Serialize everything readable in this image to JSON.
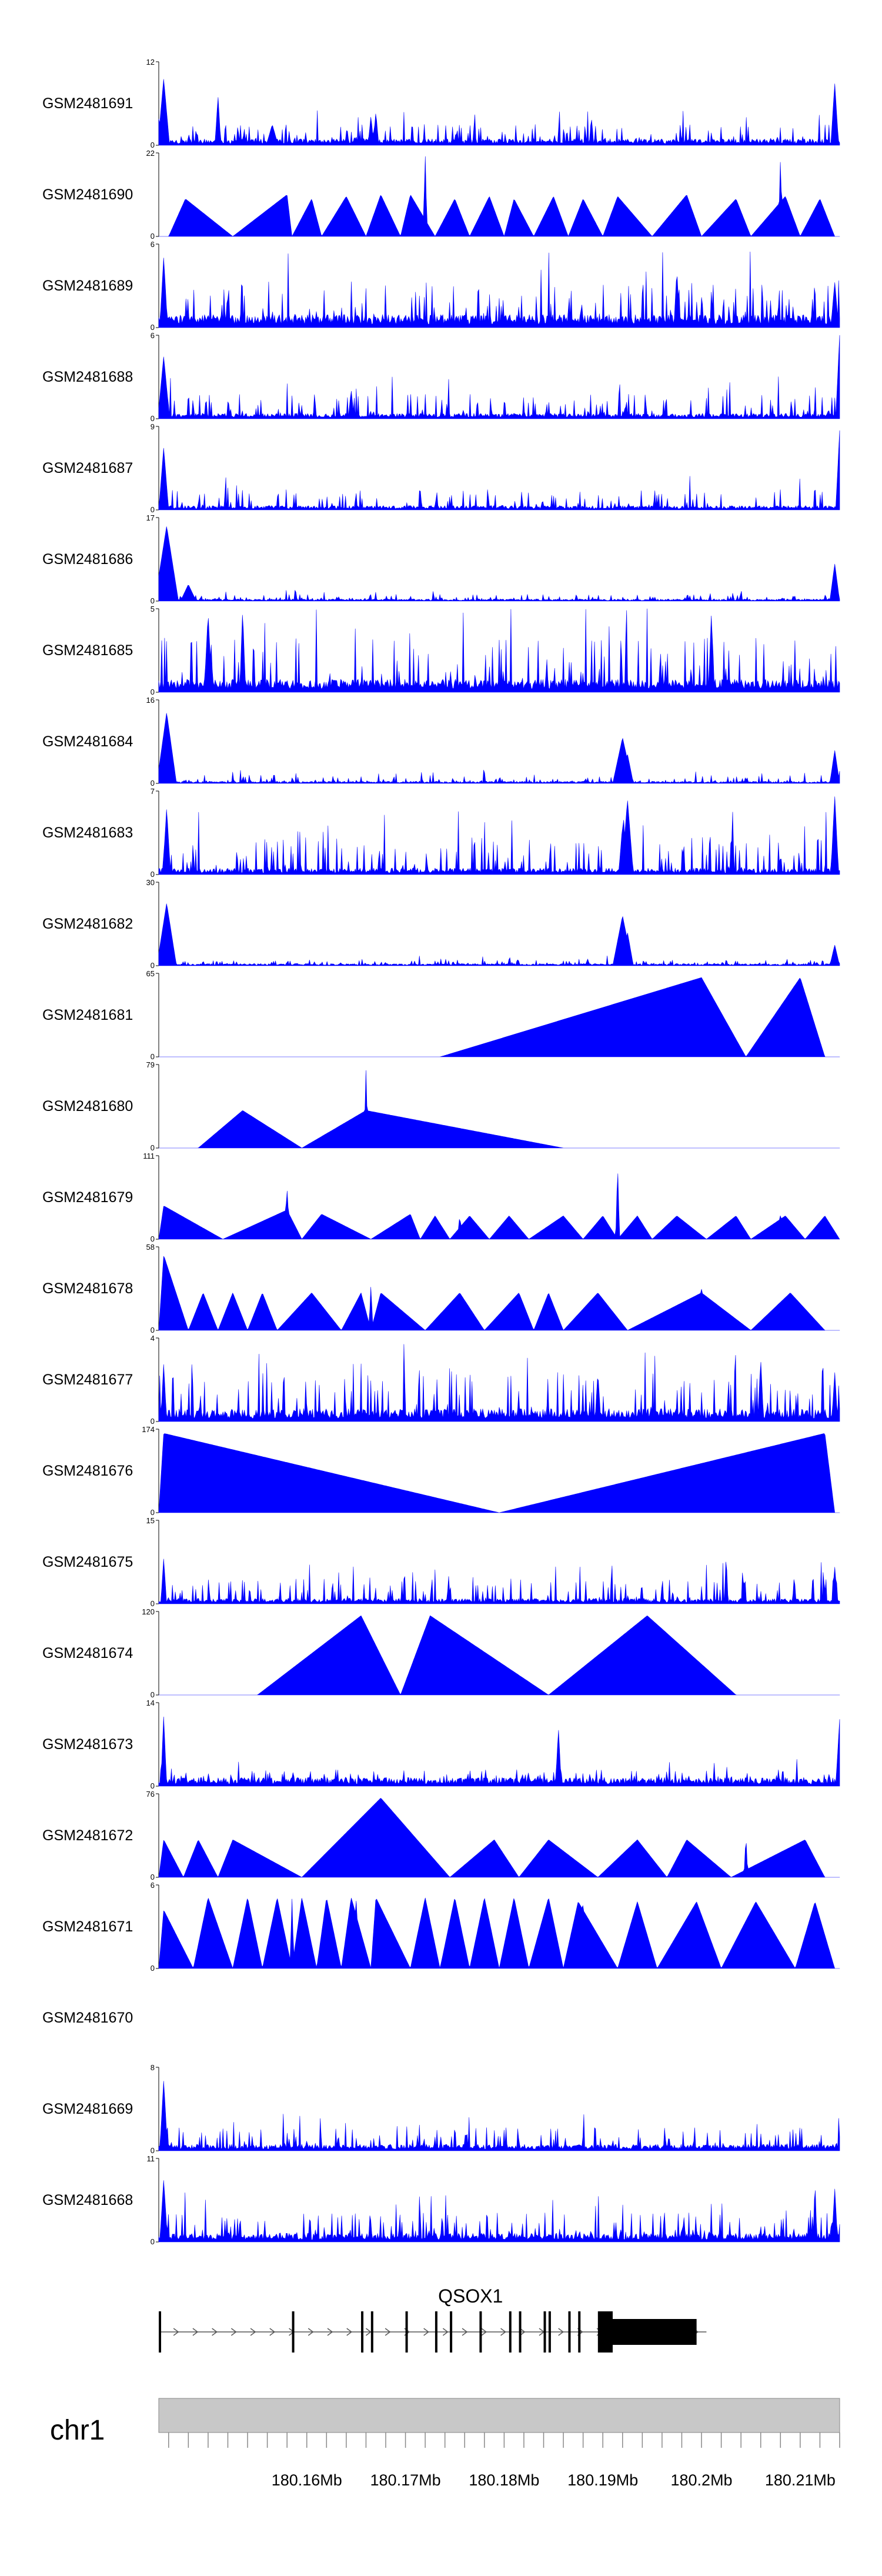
{
  "chart_data": {
    "type": "area",
    "title": "",
    "chromosome": "chr1",
    "region_mb": [
      180.145,
      180.214
    ],
    "x_ticks": [
      180.16,
      180.17,
      180.18,
      180.19,
      180.2,
      180.21
    ],
    "x_tick_labels": [
      "180.16Mb",
      "180.17Mb",
      "180.18Mb",
      "180.19Mb",
      "180.2Mb",
      "180.21Mb"
    ],
    "fill_color": "#0000ff",
    "tracks": [
      {
        "name": "GSM2481691",
        "ymax": 12,
        "ymin_label": "0",
        "style": "spiky",
        "base": 0.06,
        "spike": 0.25,
        "peaks": [
          [
            180.1455,
            0.8,
            0.0006
          ],
          [
            180.151,
            0.6,
            0.0003
          ],
          [
            180.167,
            0.4,
            0.0003
          ],
          [
            180.1665,
            0.35,
            0.0003
          ],
          [
            180.1565,
            0.25,
            0.0006
          ],
          [
            180.2135,
            0.75,
            0.0004
          ]
        ]
      },
      {
        "name": "GSM2481690",
        "ymax": 22,
        "ymin_label": "0",
        "style": "tri",
        "base": 0.0,
        "spike": 0.0,
        "tri": [
          [
            180.146,
            180.1477,
            180.1525,
            0.45
          ],
          [
            180.1525,
            180.158,
            180.1585,
            0.5
          ],
          [
            180.1585,
            180.1605,
            180.1615,
            0.45
          ],
          [
            180.1615,
            180.164,
            180.166,
            0.48
          ],
          [
            180.166,
            180.1675,
            180.1695,
            0.5
          ],
          [
            180.1695,
            180.1705,
            180.173,
            0.5
          ],
          [
            180.173,
            180.175,
            180.1765,
            0.45
          ],
          [
            180.1765,
            180.1785,
            180.18,
            0.48
          ],
          [
            180.18,
            180.181,
            180.183,
            0.45
          ],
          [
            180.183,
            180.185,
            180.1865,
            0.48
          ],
          [
            180.1865,
            180.188,
            180.19,
            0.45
          ],
          [
            180.19,
            180.1915,
            180.195,
            0.48
          ],
          [
            180.195,
            180.1985,
            180.2,
            0.5
          ],
          [
            180.2,
            180.2035,
            180.205,
            0.45
          ],
          [
            180.205,
            180.2085,
            180.21,
            0.48
          ],
          [
            180.21,
            180.212,
            180.2135,
            0.45
          ]
        ],
        "peaks": [
          [
            180.172,
            1.0,
            0.0002
          ],
          [
            180.208,
            0.95,
            0.0002
          ],
          [
            180.1605,
            0.4,
            0.0002
          ]
        ]
      },
      {
        "name": "GSM2481689",
        "ymax": 6,
        "ymin_label": "0",
        "style": "spiky",
        "base": 0.12,
        "spike": 0.55,
        "peaks": [
          [
            180.1455,
            0.85,
            0.0004
          ],
          [
            180.1455,
            0.75,
            0.0003
          ],
          [
            180.1975,
            0.7,
            0.0003
          ],
          [
            180.2135,
            0.55,
            0.0004
          ]
        ]
      },
      {
        "name": "GSM2481688",
        "ymax": 6,
        "ymin_label": "0",
        "style": "spiky",
        "base": 0.05,
        "spike": 0.3,
        "peaks": [
          [
            180.1455,
            0.75,
            0.0006
          ],
          [
            180.214,
            1.0,
            0.0004
          ],
          [
            180.1645,
            0.35,
            0.0003
          ]
        ]
      },
      {
        "name": "GSM2481687",
        "ymax": 9,
        "ymin_label": "0",
        "style": "spiky",
        "base": 0.04,
        "spike": 0.25,
        "peaks": [
          [
            180.1455,
            0.75,
            0.0005
          ],
          [
            180.214,
            0.95,
            0.0004
          ]
        ]
      },
      {
        "name": "GSM2481686",
        "ymax": 17,
        "ymin_label": "0",
        "style": "spiky",
        "base": 0.02,
        "spike": 0.08,
        "peaks": [
          [
            180.1458,
            0.9,
            0.0012
          ],
          [
            180.148,
            0.2,
            0.0008
          ],
          [
            180.2135,
            0.45,
            0.0005
          ]
        ]
      },
      {
        "name": "GSM2481685",
        "ymax": 5,
        "ymin_label": "0",
        "style": "spiky",
        "base": 0.12,
        "spike": 0.65,
        "peaks": [
          [
            180.15,
            0.95,
            0.0004
          ],
          [
            180.1535,
            1.0,
            0.0003
          ],
          [
            180.201,
            0.95,
            0.0003
          ]
        ]
      },
      {
        "name": "GSM2481684",
        "ymax": 16,
        "ymin_label": "0",
        "style": "spiky",
        "base": 0.02,
        "spike": 0.1,
        "peaks": [
          [
            180.1458,
            0.85,
            0.001
          ],
          [
            180.192,
            0.55,
            0.001
          ],
          [
            180.1925,
            0.35,
            0.0006
          ],
          [
            180.2135,
            0.4,
            0.0005
          ]
        ]
      },
      {
        "name": "GSM2481683",
        "ymax": 7,
        "ymin_label": "0",
        "style": "spiky",
        "base": 0.06,
        "spike": 0.45,
        "peaks": [
          [
            180.1458,
            0.8,
            0.0004
          ],
          [
            180.1925,
            0.9,
            0.0006
          ],
          [
            180.192,
            0.6,
            0.0004
          ],
          [
            180.2135,
            0.95,
            0.0004
          ]
        ]
      },
      {
        "name": "GSM2481682",
        "ymax": 30,
        "ymin_label": "0",
        "style": "spiky",
        "base": 0.02,
        "spike": 0.07,
        "peaks": [
          [
            180.1458,
            0.75,
            0.001
          ],
          [
            180.192,
            0.6,
            0.001
          ],
          [
            180.1925,
            0.4,
            0.0006
          ],
          [
            180.2135,
            0.25,
            0.0005
          ]
        ]
      },
      {
        "name": "GSM2481681",
        "ymax": 65,
        "ymin_label": "0",
        "style": "tri",
        "base": 0.0,
        "spike": 0.0,
        "tri": [
          [
            180.1735,
            180.2,
            180.2045,
            0.95
          ],
          [
            180.2045,
            180.21,
            180.2125,
            0.95
          ]
        ],
        "peaks": []
      },
      {
        "name": "GSM2481680",
        "ymax": 79,
        "ymin_label": "0",
        "style": "tri",
        "base": 0.0,
        "spike": 0.0,
        "tri": [
          [
            180.149,
            180.1535,
            180.1595,
            0.45
          ],
          [
            180.1595,
            180.166,
            180.186,
            0.45
          ]
        ],
        "peaks": [
          [
            180.166,
            0.95,
            0.0002
          ]
        ]
      },
      {
        "name": "GSM2481679",
        "ymax": 111,
        "ymin_label": "0",
        "style": "tri",
        "base": 0.0,
        "spike": 0.0,
        "tri": [
          [
            180.145,
            180.1455,
            180.1515,
            0.4
          ],
          [
            180.1515,
            180.158,
            180.1595,
            0.35
          ],
          [
            180.1595,
            180.1615,
            180.1665,
            0.3
          ],
          [
            180.1665,
            180.1705,
            180.1715,
            0.3
          ],
          [
            180.1715,
            180.173,
            180.1745,
            0.28
          ],
          [
            180.1745,
            180.1765,
            180.1785,
            0.28
          ],
          [
            180.1785,
            180.1805,
            180.1825,
            0.28
          ],
          [
            180.1825,
            180.186,
            180.188,
            0.28
          ],
          [
            180.188,
            180.19,
            180.1915,
            0.28
          ],
          [
            180.1915,
            180.1935,
            180.195,
            0.28
          ],
          [
            180.195,
            180.1975,
            180.2005,
            0.28
          ],
          [
            180.2005,
            180.2035,
            180.205,
            0.28
          ],
          [
            180.205,
            180.2085,
            180.2105,
            0.28
          ],
          [
            180.2105,
            180.2125,
            180.214,
            0.28
          ]
        ],
        "peaks": [
          [
            180.158,
            0.6,
            0.0003
          ],
          [
            180.1915,
            0.9,
            0.0002
          ],
          [
            180.1755,
            0.3,
            0.0002
          ],
          [
            180.208,
            0.3,
            0.0002
          ]
        ]
      },
      {
        "name": "GSM2481678",
        "ymax": 58,
        "ymin_label": "0",
        "style": "tri",
        "base": 0.0,
        "spike": 0.0,
        "tri": [
          [
            180.145,
            180.1455,
            180.148,
            0.9
          ],
          [
            180.148,
            180.1495,
            180.151,
            0.45
          ],
          [
            180.151,
            180.1525,
            180.154,
            0.45
          ],
          [
            180.154,
            180.1555,
            180.157,
            0.45
          ],
          [
            180.157,
            180.1605,
            180.1635,
            0.45
          ],
          [
            180.1635,
            180.1655,
            180.1665,
            0.45
          ],
          [
            180.1665,
            180.1675,
            180.172,
            0.45
          ],
          [
            180.172,
            180.1755,
            180.178,
            0.45
          ],
          [
            180.178,
            180.1815,
            180.183,
            0.45
          ],
          [
            180.183,
            180.1845,
            180.186,
            0.45
          ],
          [
            180.186,
            180.1895,
            180.1925,
            0.45
          ],
          [
            180.1925,
            180.2,
            180.205,
            0.45
          ],
          [
            180.205,
            180.209,
            180.2125,
            0.45
          ]
        ],
        "peaks": [
          [
            180.1465,
            0.55,
            0.0003
          ],
          [
            180.1665,
            0.55,
            0.0002
          ],
          [
            180.1815,
            0.45,
            0.0002
          ],
          [
            180.2,
            0.5,
            0.0002
          ]
        ]
      },
      {
        "name": "GSM2481677",
        "ymax": 4,
        "ymin_label": "0",
        "style": "spiky",
        "base": 0.12,
        "spike": 0.6,
        "peaks": [
          [
            180.1455,
            0.7,
            0.0003
          ],
          [
            180.1895,
            0.6,
            0.0003
          ],
          [
            180.206,
            0.75,
            0.0003
          ],
          [
            180.2135,
            0.6,
            0.0003
          ]
        ]
      },
      {
        "name": "GSM2481676",
        "ymax": 174,
        "ymin_label": "0",
        "style": "tri",
        "base": 0.0,
        "spike": 0.0,
        "tri": [
          [
            180.145,
            180.1455,
            180.1795,
            0.95
          ],
          [
            180.1795,
            180.2125,
            180.2135,
            0.95
          ]
        ],
        "peaks": []
      },
      {
        "name": "GSM2481675",
        "ymax": 15,
        "ymin_label": "0",
        "style": "spiky",
        "base": 0.05,
        "spike": 0.3,
        "peaks": [
          [
            180.1455,
            0.55,
            0.0003
          ],
          [
            180.2025,
            0.6,
            0.0002
          ],
          [
            180.2135,
            0.45,
            0.0003
          ]
        ]
      },
      {
        "name": "GSM2481674",
        "ymax": 120,
        "ymin_label": "0",
        "style": "tri",
        "base": 0.0,
        "spike": 0.0,
        "tri": [
          [
            180.155,
            180.1655,
            180.1695,
            0.95
          ],
          [
            180.1695,
            180.1725,
            180.1845,
            0.95
          ],
          [
            180.1845,
            180.1945,
            180.2035,
            0.95
          ]
        ],
        "peaks": []
      },
      {
        "name": "GSM2481673",
        "ymax": 14,
        "ymin_label": "0",
        "style": "spiky",
        "base": 0.08,
        "spike": 0.2,
        "peaks": [
          [
            180.1455,
            0.85,
            0.0003
          ],
          [
            180.1855,
            0.7,
            0.0003
          ],
          [
            180.214,
            0.8,
            0.0004
          ]
        ]
      },
      {
        "name": "GSM2481672",
        "ymax": 76,
        "ymin_label": "0",
        "style": "tri",
        "base": 0.0,
        "spike": 0.0,
        "tri": [
          [
            180.145,
            180.1455,
            180.1475,
            0.45
          ],
          [
            180.1475,
            180.149,
            180.151,
            0.45
          ],
          [
            180.151,
            180.1525,
            180.1595,
            0.45
          ],
          [
            180.1595,
            180.1675,
            180.1745,
            0.95
          ],
          [
            180.1745,
            180.179,
            180.1815,
            0.45
          ],
          [
            180.1815,
            180.1845,
            180.1895,
            0.45
          ],
          [
            180.1895,
            180.1935,
            180.1965,
            0.45
          ],
          [
            180.1965,
            180.1985,
            180.203,
            0.45
          ],
          [
            180.203,
            180.2105,
            180.2125,
            0.45
          ]
        ],
        "peaks": [
          [
            180.2045,
            0.5,
            0.0002
          ]
        ]
      },
      {
        "name": "GSM2481671",
        "ymax": 6,
        "ymin_label": "0",
        "style": "tri",
        "base": 0.0,
        "spike": 0.0,
        "tri": [
          [
            180.145,
            180.1455,
            180.1485,
            0.7
          ],
          [
            180.1485,
            180.15,
            180.1525,
            0.85
          ],
          [
            180.1525,
            180.154,
            180.1555,
            0.85
          ],
          [
            180.1555,
            180.157,
            180.1585,
            0.85
          ],
          [
            180.1585,
            180.1595,
            180.161,
            0.85
          ],
          [
            180.161,
            180.162,
            180.1635,
            0.85
          ],
          [
            180.1635,
            180.1645,
            180.1665,
            0.85
          ],
          [
            180.1665,
            180.167,
            180.1705,
            0.85
          ],
          [
            180.1705,
            180.172,
            180.1735,
            0.85
          ],
          [
            180.1735,
            180.175,
            180.1765,
            0.85
          ],
          [
            180.1765,
            180.178,
            180.1795,
            0.85
          ],
          [
            180.1795,
            180.181,
            180.1825,
            0.85
          ],
          [
            180.1825,
            180.1845,
            180.186,
            0.85
          ],
          [
            180.186,
            180.1875,
            180.1915,
            0.8
          ],
          [
            180.1915,
            180.1935,
            180.1955,
            0.8
          ],
          [
            180.1955,
            180.1995,
            180.202,
            0.8
          ],
          [
            180.202,
            180.2055,
            180.2095,
            0.8
          ],
          [
            180.2095,
            180.2115,
            180.2135,
            0.8
          ]
        ],
        "peaks": [
          [
            180.1585,
            0.85,
            0.0002
          ],
          [
            180.165,
            0.85,
            0.0002
          ],
          [
            180.188,
            0.85,
            0.0002
          ]
        ]
      },
      {
        "name": "GSM2481670",
        "ymax": null,
        "ymin_label": "",
        "style": "empty",
        "base": 0.0,
        "spike": 0.0,
        "peaks": []
      },
      {
        "name": "GSM2481669",
        "ymax": 8,
        "ymin_label": "0",
        "style": "spiky",
        "base": 0.06,
        "spike": 0.28,
        "peaks": [
          [
            180.1455,
            0.85,
            0.0004
          ]
        ]
      },
      {
        "name": "GSM2481668",
        "ymax": 11,
        "ymin_label": "0",
        "style": "spiky",
        "base": 0.08,
        "spike": 0.35,
        "peaks": [
          [
            180.1455,
            0.75,
            0.0004
          ],
          [
            180.2115,
            0.75,
            0.0002
          ],
          [
            180.2135,
            0.65,
            0.0003
          ]
        ]
      }
    ],
    "gene": {
      "name": "QSOX1",
      "strand": "+",
      "tx_start_mb": 180.145,
      "tx_end_mb": 180.2005,
      "exons_mb": [
        [
          180.145,
          180.1452
        ],
        [
          180.1585,
          180.1587
        ],
        [
          180.1655,
          180.1657
        ],
        [
          180.1665,
          180.1667
        ],
        [
          180.17,
          180.1702
        ],
        [
          180.173,
          180.1732
        ],
        [
          180.1745,
          180.1747
        ],
        [
          180.1775,
          180.1777
        ],
        [
          180.1805,
          180.1807
        ],
        [
          180.1815,
          180.1817
        ],
        [
          180.184,
          180.1842
        ],
        [
          180.1845,
          180.1847
        ],
        [
          180.1865,
          180.1867
        ],
        [
          180.1875,
          180.1877
        ],
        [
          180.1895,
          180.191
        ]
      ],
      "cds_end_mb": 180.1905,
      "utr3_end_mb": 180.1995
    }
  }
}
